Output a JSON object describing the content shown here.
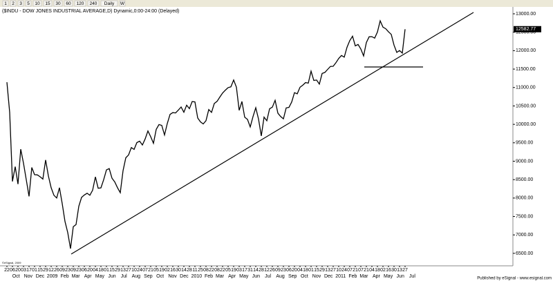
{
  "chart_data": {
    "type": "line",
    "title": "($INDU - DOW JONES INDUSTRIAL AVERAGE,D) Dynamic,0:00-24:00 (Delayed)",
    "toolbar": [
      "1",
      "2",
      "3",
      "5",
      "10",
      "15",
      "30",
      "60",
      "120",
      "240",
      "Daily",
      "W"
    ],
    "watermark": "©eSignal, 2009",
    "footer": "Published by eSignal - www.esignal.com",
    "series": [
      {
        "name": "$INDU",
        "color": "#000000",
        "values": [
          11143,
          10325,
          8451,
          8852,
          8378,
          9325,
          8943,
          8497,
          8046,
          8829,
          8635,
          8629,
          8579,
          8515,
          9034,
          8599,
          8281,
          8077,
          8001,
          8280,
          7850,
          7366,
          7063,
          6627,
          7224,
          7279,
          7776,
          8018,
          8083,
          8131,
          8076,
          8212,
          8575,
          8268,
          8277,
          8500,
          8764,
          8799,
          8539,
          8438,
          8280,
          8146,
          8743,
          9093,
          9171,
          9370,
          9321,
          9505,
          9544,
          9441,
          9605,
          9820,
          9665,
          9487,
          9864,
          9995,
          9972,
          9712,
          10023,
          10270,
          10318,
          10309,
          10388,
          10471,
          10328,
          10520,
          10428,
          10618,
          10609,
          10172,
          10067,
          10012,
          10099,
          10402,
          10325,
          10566,
          10624,
          10741,
          10850,
          10927,
          10997,
          11018,
          11204,
          11008,
          10380,
          10620,
          10193,
          10136,
          9931,
          10211,
          10450,
          10143,
          9686,
          10198,
          10098,
          10424,
          10466,
          10653,
          10303,
          10213,
          10150,
          10447,
          10462,
          10607,
          10860,
          10829,
          11006,
          11062,
          11133,
          11118,
          11444,
          11192,
          11203,
          11092,
          11382,
          11410,
          11491,
          11573,
          11577,
          11674,
          11787,
          11871,
          11823,
          12092,
          12273,
          12391,
          12130,
          12169,
          12044,
          11858,
          12220,
          12376,
          12380,
          12341,
          12505,
          12810,
          12638,
          12596,
          12512,
          12441,
          12151,
          11952,
          12004,
          11934,
          12582.77
        ]
      }
    ],
    "xlim": [
      -2,
      183
    ],
    "xticks": [
      {
        "value": 0,
        "label": "22"
      },
      {
        "value": 2,
        "label": "06"
      },
      {
        "value": 4,
        "label": "20"
      },
      {
        "value": 6,
        "label": "03"
      },
      {
        "value": 8,
        "label": "17"
      },
      {
        "value": 10,
        "label": "01"
      },
      {
        "value": 12,
        "label": "15"
      },
      {
        "value": 14,
        "label": "29"
      },
      {
        "value": 16,
        "label": "12"
      },
      {
        "value": 18,
        "label": "26"
      },
      {
        "value": 20,
        "label": "09"
      },
      {
        "value": 22,
        "label": "23"
      },
      {
        "value": 24,
        "label": "09"
      },
      {
        "value": 26,
        "label": "23"
      },
      {
        "value": 28,
        "label": "06"
      },
      {
        "value": 30,
        "label": "20"
      },
      {
        "value": 32,
        "label": "04"
      },
      {
        "value": 34,
        "label": "18"
      },
      {
        "value": 36,
        "label": "01"
      },
      {
        "value": 38,
        "label": "15"
      },
      {
        "value": 40,
        "label": "29"
      },
      {
        "value": 42,
        "label": "13"
      },
      {
        "value": 44,
        "label": "27"
      },
      {
        "value": 46,
        "label": "10"
      },
      {
        "value": 48,
        "label": "24"
      },
      {
        "value": 50,
        "label": "07"
      },
      {
        "value": 52,
        "label": "21"
      },
      {
        "value": 54,
        "label": "05"
      },
      {
        "value": 56,
        "label": "19"
      },
      {
        "value": 58,
        "label": "02"
      },
      {
        "value": 60,
        "label": "16"
      },
      {
        "value": 62,
        "label": "30"
      },
      {
        "value": 64,
        "label": "14"
      },
      {
        "value": 66,
        "label": "28"
      },
      {
        "value": 68,
        "label": "11"
      },
      {
        "value": 70,
        "label": "25"
      },
      {
        "value": 72,
        "label": "08"
      },
      {
        "value": 74,
        "label": "22"
      },
      {
        "value": 76,
        "label": "08"
      },
      {
        "value": 78,
        "label": "22"
      },
      {
        "value": 80,
        "label": "05"
      },
      {
        "value": 82,
        "label": "19"
      },
      {
        "value": 84,
        "label": "03"
      },
      {
        "value": 86,
        "label": "17"
      },
      {
        "value": 88,
        "label": "31"
      },
      {
        "value": 90,
        "label": "14"
      },
      {
        "value": 92,
        "label": "28"
      },
      {
        "value": 94,
        "label": "12"
      },
      {
        "value": 96,
        "label": "26"
      },
      {
        "value": 98,
        "label": "09"
      },
      {
        "value": 100,
        "label": "23"
      },
      {
        "value": 102,
        "label": "06"
      },
      {
        "value": 104,
        "label": "20"
      },
      {
        "value": 106,
        "label": "04"
      },
      {
        "value": 108,
        "label": "18"
      },
      {
        "value": 110,
        "label": "01"
      },
      {
        "value": 112,
        "label": "15"
      },
      {
        "value": 114,
        "label": "29"
      },
      {
        "value": 116,
        "label": "13"
      },
      {
        "value": 118,
        "label": "27"
      },
      {
        "value": 120,
        "label": "10"
      },
      {
        "value": 122,
        "label": "24"
      },
      {
        "value": 124,
        "label": "07"
      },
      {
        "value": 126,
        "label": "21"
      },
      {
        "value": 128,
        "label": "07"
      },
      {
        "value": 130,
        "label": "21"
      },
      {
        "value": 132,
        "label": "04"
      },
      {
        "value": 134,
        "label": "18"
      },
      {
        "value": 136,
        "label": "02"
      },
      {
        "value": 138,
        "label": "16"
      },
      {
        "value": 140,
        "label": "30"
      },
      {
        "value": 142,
        "label": "13"
      },
      {
        "value": 144,
        "label": "27"
      }
    ],
    "month_ticks": [
      {
        "value": 1.3,
        "label": "Oct"
      },
      {
        "value": 5.7,
        "label": "Nov"
      },
      {
        "value": 10,
        "label": "Dec"
      },
      {
        "value": 14.4,
        "label": "2009"
      },
      {
        "value": 18.9,
        "label": "Feb"
      },
      {
        "value": 22.9,
        "label": "Mar"
      },
      {
        "value": 27.3,
        "label": "Apr"
      },
      {
        "value": 31.6,
        "label": "May"
      },
      {
        "value": 36,
        "label": "Jun"
      },
      {
        "value": 40.3,
        "label": "Jul"
      },
      {
        "value": 44.7,
        "label": "Aug"
      },
      {
        "value": 49.1,
        "label": "Sep"
      },
      {
        "value": 53.4,
        "label": "Oct"
      },
      {
        "value": 57.9,
        "label": "Nov"
      },
      {
        "value": 62.1,
        "label": "Dec"
      },
      {
        "value": 66.6,
        "label": "2010"
      },
      {
        "value": 71,
        "label": "Feb"
      },
      {
        "value": 75,
        "label": "Mar"
      },
      {
        "value": 79.4,
        "label": "Apr"
      },
      {
        "value": 83.7,
        "label": "May"
      },
      {
        "value": 88.1,
        "label": "Jun"
      },
      {
        "value": 92.4,
        "label": "Jul"
      },
      {
        "value": 96.9,
        "label": "Aug"
      },
      {
        "value": 101.3,
        "label": "Sep"
      },
      {
        "value": 105.6,
        "label": "Oct"
      },
      {
        "value": 110,
        "label": "Nov"
      },
      {
        "value": 114.3,
        "label": "Dec"
      },
      {
        "value": 118.7,
        "label": "2011"
      },
      {
        "value": 123.1,
        "label": "Feb"
      },
      {
        "value": 127.1,
        "label": "Mar"
      },
      {
        "value": 131.6,
        "label": "Apr"
      },
      {
        "value": 135.9,
        "label": "May"
      },
      {
        "value": 140.3,
        "label": "Jun"
      },
      {
        "value": 144.6,
        "label": "Jul"
      }
    ],
    "ylim": [
      6030,
      13150
    ],
    "yticks": [
      {
        "value": 6500,
        "label": "6500.00"
      },
      {
        "value": 7000,
        "label": "7000.00"
      },
      {
        "value": 7500,
        "label": "7500.00"
      },
      {
        "value": 8000,
        "label": "8000.00"
      },
      {
        "value": 8500,
        "label": "8500.00"
      },
      {
        "value": 9000,
        "label": "9000.00"
      },
      {
        "value": 9500,
        "label": "9500.00"
      },
      {
        "value": 10000,
        "label": "10000.00"
      },
      {
        "value": 10500,
        "label": "10500.00"
      },
      {
        "value": 11000,
        "label": "11000.00"
      },
      {
        "value": 11500,
        "label": "11500.00"
      },
      {
        "value": 12000,
        "label": "12000.00"
      },
      {
        "value": 12500,
        "label": "12500.00"
      },
      {
        "value": 13000,
        "label": "13000.00"
      }
    ],
    "grid": false
  }
}
